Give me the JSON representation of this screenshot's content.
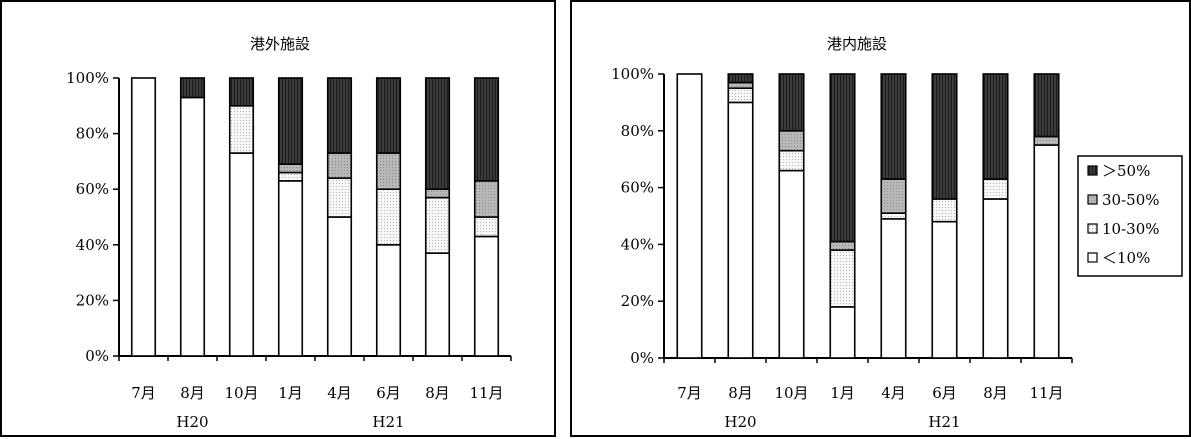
{
  "pattern_colors": {
    "gt50": "#3c3c3c",
    "r30_50": "#b8b8b8",
    "r10_30": "#e6e6e6",
    "lt10": "#ffffff"
  },
  "chart_data": [
    {
      "type": "bar",
      "stacked": "percent",
      "title": "港外施設",
      "xlabel": "",
      "ylabel": "",
      "ylim": [
        0,
        100
      ],
      "yticks": [
        "0%",
        "20%",
        "40%",
        "60%",
        "80%",
        "100%"
      ],
      "categories": [
        "7月",
        "8月",
        "10月",
        "1月",
        "4月",
        "6月",
        "8月",
        "11月"
      ],
      "groups": [
        {
          "label": "H20",
          "under": 1
        },
        {
          "label": "H21",
          "under": 5
        }
      ],
      "legend": null,
      "series": [
        {
          "name": "<10%",
          "values": [
            100,
            93,
            73,
            63,
            50,
            40,
            37,
            43
          ]
        },
        {
          "name": "10-30%",
          "values": [
            0,
            0,
            17,
            3,
            14,
            20,
            20,
            7
          ]
        },
        {
          "name": "30-50%",
          "values": [
            0,
            0,
            0,
            3,
            9,
            13,
            3,
            13
          ]
        },
        {
          "name": ">50%",
          "values": [
            0,
            7,
            10,
            31,
            27,
            27,
            40,
            37
          ]
        }
      ]
    },
    {
      "type": "bar",
      "stacked": "percent",
      "title": "港内施設",
      "xlabel": "",
      "ylabel": "",
      "ylim": [
        0,
        100
      ],
      "yticks": [
        "0%",
        "20%",
        "40%",
        "60%",
        "80%",
        "100%"
      ],
      "categories": [
        "7月",
        "8月",
        "10月",
        "1月",
        "4月",
        "6月",
        "8月",
        "11月"
      ],
      "groups": [
        {
          "label": "H20",
          "under": 1
        },
        {
          "label": "H21",
          "under": 5
        }
      ],
      "legend": "right",
      "legend_labels": [
        {
          "series": ">50%",
          "label": "＞50%"
        },
        {
          "series": "30-50%",
          "label": "30-50%"
        },
        {
          "series": "10-30%",
          "label": "10-30%"
        },
        {
          "series": "<10%",
          "label": "＜10%"
        }
      ],
      "series": [
        {
          "name": "<10%",
          "values": [
            100,
            90,
            66,
            18,
            49,
            48,
            56,
            75
          ]
        },
        {
          "name": "10-30%",
          "values": [
            0,
            5,
            7,
            20,
            2,
            8,
            7,
            0
          ]
        },
        {
          "name": "30-50%",
          "values": [
            0,
            2,
            7,
            3,
            12,
            0,
            0,
            3
          ]
        },
        {
          "name": ">50%",
          "values": [
            0,
            3,
            20,
            59,
            37,
            44,
            37,
            22
          ]
        }
      ]
    }
  ]
}
